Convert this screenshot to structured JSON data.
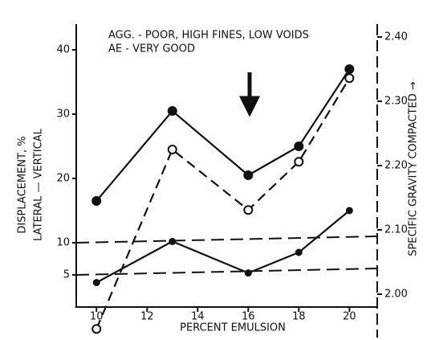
{
  "chart_data": {
    "type": "line",
    "annotations": [
      "AGG. - POOR, HIGH FINES, LOW VOIDS",
      "AE - VERY GOOD"
    ],
    "xlabel": "PERCENT EMULSION",
    "ylabel": [
      "DISPLACEMENT, %",
      "LATERAL — VERTICAL"
    ],
    "y2label": "SPECIFIC GRAVITY COMPACTED →",
    "xlim": [
      9.2,
      21.1
    ],
    "xticks": [
      10,
      12,
      14,
      16,
      18,
      20
    ],
    "ylim": [
      0,
      44
    ],
    "yticks": [
      5,
      10,
      20,
      30,
      40
    ],
    "y2lim": [
      1.98,
      2.42
    ],
    "y2ticks": [
      {
        "value": 2.0,
        "label": "2.00"
      },
      {
        "value": 2.1,
        "label": "2.10"
      },
      {
        "value": 2.2,
        "label": "2.20"
      },
      {
        "value": 2.3,
        "label": "2.30"
      },
      {
        "value": 2.4,
        "label": "2.40"
      }
    ],
    "reference_lines": [
      10,
      5
    ],
    "series": [
      {
        "color": "#111111",
        "style": "solid",
        "marker": "filled",
        "x": [
          10,
          13,
          16,
          18,
          20
        ],
        "values": [
          16.5,
          30.5,
          20.5,
          25,
          37
        ]
      },
      {
        "color": "#111111",
        "style": "dashed",
        "marker": "open",
        "axis": "y2",
        "x": [
          10,
          13,
          16,
          18,
          20
        ],
        "values": [
          1.946,
          2.225,
          2.131,
          2.206,
          2.336
        ]
      },
      {
        "color": "#111111",
        "style": "solid",
        "marker": "small",
        "x": [
          10,
          13,
          16,
          18,
          20
        ],
        "values": [
          3.8,
          10.2,
          5.3,
          8.5,
          15
        ]
      }
    ]
  }
}
